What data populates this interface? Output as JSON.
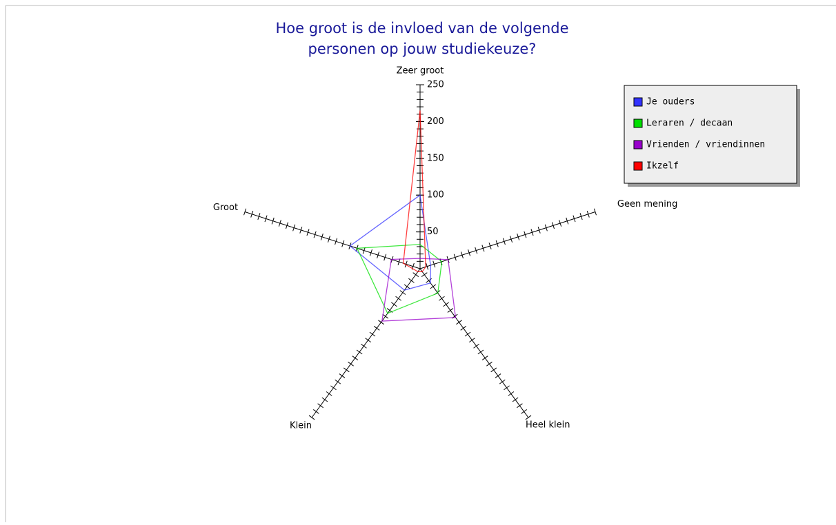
{
  "chart_data": {
    "type": "radar",
    "title": [
      "Hoe groot is de invloed van de volgende",
      "personen op jouw studiekeuze?"
    ],
    "categories": [
      "Zeer groot",
      "Geen mening",
      "Heel klein",
      "Klein",
      "Groot"
    ],
    "series": [
      {
        "name": "Je ouders",
        "color": "#3333ff",
        "values": [
          100,
          15,
          24,
          36,
          100
        ]
      },
      {
        "name": "Leraren / decaan",
        "color": "#00e000",
        "values": [
          33,
          31,
          41,
          75,
          90
        ]
      },
      {
        "name": "Vrienden / vriendinnen",
        "color": "#9900cc",
        "values": [
          14,
          40,
          82,
          88,
          41
        ]
      },
      {
        "name": "Ikzelf",
        "color": "#ff0000",
        "values": [
          215,
          8,
          5,
          5,
          24
        ]
      }
    ],
    "rlim": [
      0,
      250
    ],
    "rticks": [
      50,
      100,
      150,
      200,
      250
    ],
    "rminor": 10,
    "legend": "upper right"
  }
}
